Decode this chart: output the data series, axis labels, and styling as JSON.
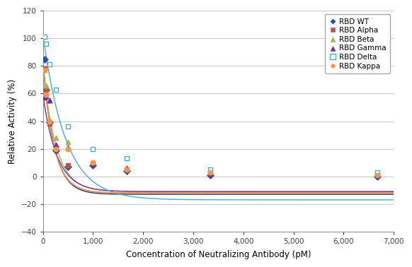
{
  "title": "",
  "xlabel": "Concentration of Neutralizing Antibody (pM)",
  "ylabel": "Relative Activity (%)",
  "xlim": [
    0,
    7000
  ],
  "ylim": [
    -40,
    120
  ],
  "yticks": [
    -40,
    -20,
    0,
    20,
    40,
    60,
    80,
    100,
    120
  ],
  "xticks": [
    0,
    1000,
    2000,
    3000,
    4000,
    5000,
    6000,
    7000
  ],
  "series": [
    {
      "name": "RBD WT",
      "line_color": "#1f3864",
      "marker": "D",
      "marker_color": "#2e4fa0",
      "open_marker": false,
      "scatter_x": [
        33,
        67,
        133,
        267,
        500,
        1000,
        1667,
        3333,
        6667
      ],
      "scatter_y": [
        85,
        63,
        39,
        19,
        7,
        8,
        4,
        1,
        0
      ],
      "fit_A": 97,
      "fit_k": 0.0045,
      "fit_C": -13
    },
    {
      "name": "RBD Alpha",
      "line_color": "#c0504d",
      "marker": "s",
      "marker_color": "#c0504d",
      "open_marker": false,
      "scatter_x": [
        33,
        67,
        133,
        267,
        500,
        1000,
        1667,
        3333,
        6667
      ],
      "scatter_y": [
        78,
        63,
        38,
        21,
        8,
        9,
        5,
        2,
        1
      ],
      "fit_A": 93,
      "fit_k": 0.0045,
      "fit_C": -12
    },
    {
      "name": "RBD Beta",
      "line_color": "#9bbb59",
      "marker": "^",
      "marker_color": "#9bbb59",
      "open_marker": false,
      "scatter_x": [
        33,
        67,
        133,
        267,
        500,
        1000,
        1667,
        3333,
        6667
      ],
      "scatter_y": [
        77,
        66,
        55,
        28,
        25,
        10,
        6,
        3,
        2
      ],
      "fit_A": 90,
      "fit_k": 0.0038,
      "fit_C": -11
    },
    {
      "name": "RBD Gamma",
      "line_color": "#7030a0",
      "marker": "^",
      "marker_color": "#7030a0",
      "open_marker": false,
      "scatter_x": [
        33,
        67,
        133,
        267,
        500,
        1000,
        1667,
        3333,
        6667
      ],
      "scatter_y": [
        57,
        58,
        55,
        23,
        21,
        9,
        6,
        2,
        1
      ],
      "fit_A": 70,
      "fit_k": 0.0035,
      "fit_C": -11
    },
    {
      "name": "RBD Delta",
      "line_color": "#4bacc6",
      "marker": "s",
      "marker_color": "#4bacc6",
      "open_marker": true,
      "scatter_x": [
        33,
        67,
        133,
        267,
        500,
        1000,
        1667,
        3333,
        6667
      ],
      "scatter_y": [
        101,
        96,
        81,
        63,
        36,
        20,
        13,
        5,
        3
      ],
      "fit_A": 120,
      "fit_k": 0.0022,
      "fit_C": -17
    },
    {
      "name": "RBD Kappa",
      "line_color": "#f79646",
      "marker": "o",
      "marker_color": "#f79646",
      "open_marker": false,
      "scatter_x": [
        33,
        67,
        133,
        267,
        500,
        1000,
        1667,
        3333,
        6667
      ],
      "scatter_y": [
        77,
        59,
        40,
        20,
        20,
        10,
        5,
        3,
        1
      ],
      "fit_A": 93,
      "fit_k": 0.0045,
      "fit_C": -12
    }
  ]
}
